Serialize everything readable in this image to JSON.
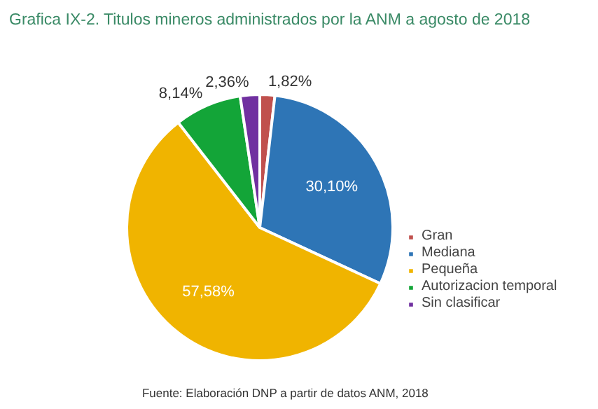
{
  "chart_data": {
    "type": "pie",
    "title": "Grafica IX-2. Titulos mineros administrados por la ANM a agosto de 2018",
    "categories": [
      "Gran",
      "Mediana",
      "Pequeña",
      "Autorizacion temporal",
      "Sin clasificar"
    ],
    "values": [
      1.82,
      30.1,
      57.58,
      8.14,
      2.36
    ],
    "colors": [
      "#c0504d",
      "#2e75b6",
      "#f0b400",
      "#13a538",
      "#7030a0"
    ],
    "value_labels": [
      "1,82%",
      "30,10%",
      "57,58%",
      "8,14%",
      "2,36%"
    ],
    "legend": "right",
    "annotations": [
      "Fuente: Elaboración DNP a partir de datos ANM, 2018"
    ]
  }
}
